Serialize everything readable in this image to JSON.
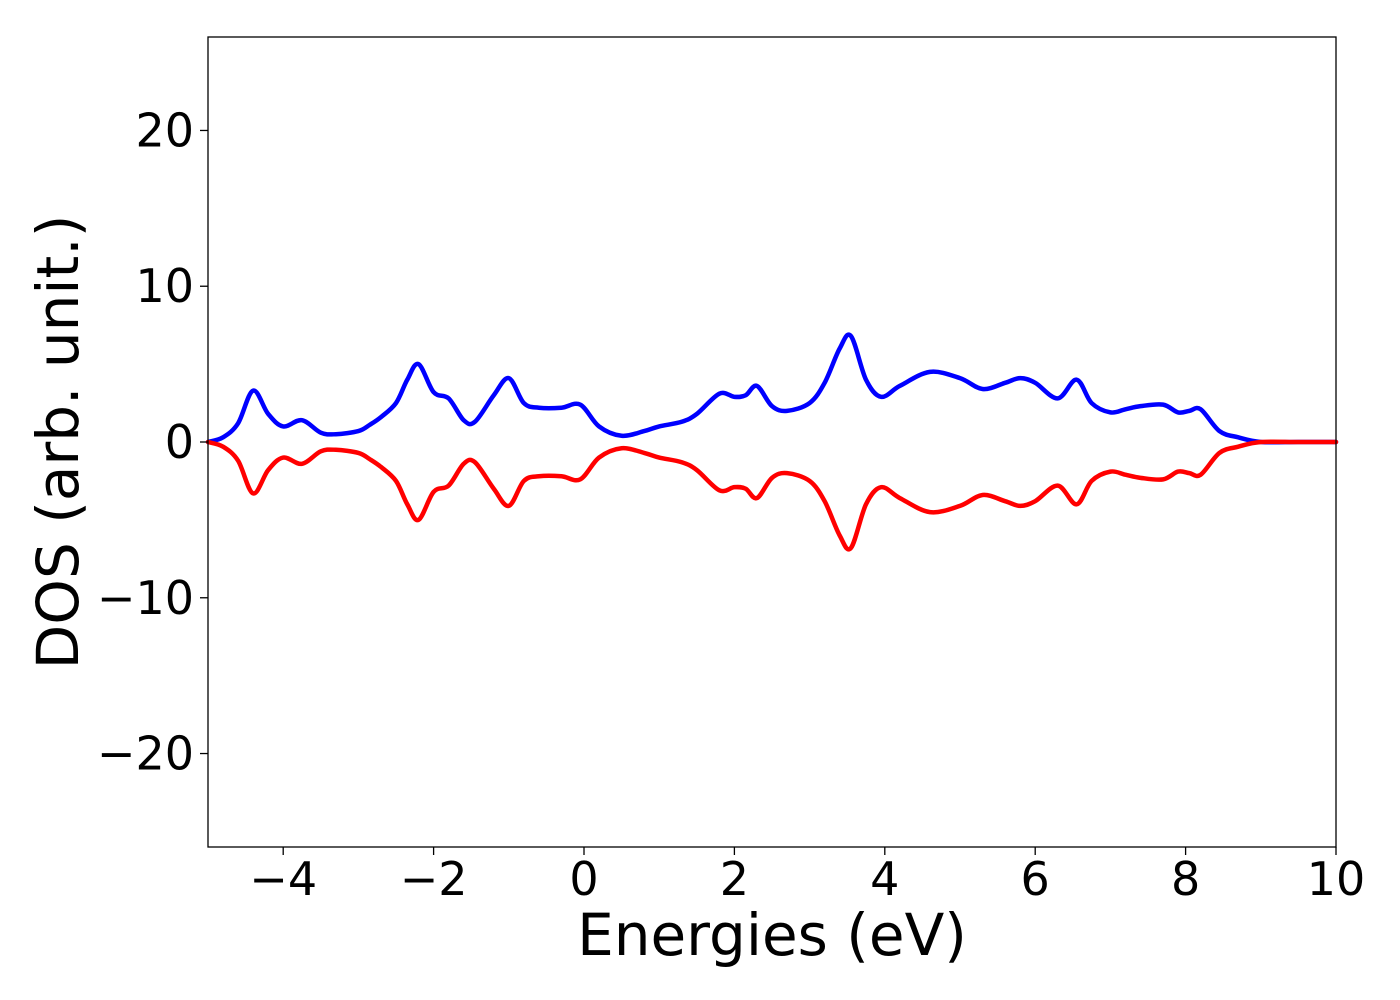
{
  "chart_data": {
    "type": "line",
    "xlabel": "Energies (eV)",
    "ylabel": "DOS (arb. unit.)",
    "xlim": [
      -5,
      10
    ],
    "ylim": [
      -26,
      26
    ],
    "x_ticks": [
      -4,
      -2,
      0,
      2,
      4,
      6,
      8,
      10
    ],
    "x_tick_labels": [
      "−4",
      "−2",
      "0",
      "2",
      "4",
      "6",
      "8",
      "10"
    ],
    "y_ticks": [
      -20,
      -10,
      0,
      10,
      20
    ],
    "y_tick_labels": [
      "−20",
      "−10",
      "0",
      "10",
      "20"
    ],
    "grid": false,
    "legend": "none",
    "series": [
      {
        "color": "#0000ff",
        "x": [
          -5.0,
          -4.8,
          -4.6,
          -4.4,
          -4.2,
          -4.0,
          -3.75,
          -3.5,
          -3.3,
          -3.0,
          -2.85,
          -2.7,
          -2.5,
          -2.35,
          -2.2,
          -2.0,
          -1.8,
          -1.6,
          -1.45,
          -1.2,
          -1.0,
          -0.8,
          -0.6,
          -0.3,
          -0.05,
          0.2,
          0.5,
          0.8,
          1.0,
          1.3,
          1.5,
          1.8,
          2.0,
          2.15,
          2.3,
          2.5,
          2.7,
          3.0,
          3.2,
          3.4,
          3.55,
          3.75,
          3.95,
          4.2,
          4.6,
          5.0,
          5.3,
          5.6,
          5.8,
          6.0,
          6.3,
          6.55,
          6.75,
          7.0,
          7.2,
          7.4,
          7.7,
          7.9,
          8.05,
          8.2,
          8.45,
          8.7,
          9.0,
          9.5,
          10.0
        ],
        "values": [
          0.0,
          0.3,
          1.2,
          3.3,
          1.8,
          1.0,
          1.4,
          0.6,
          0.5,
          0.7,
          1.1,
          1.6,
          2.5,
          4.0,
          5.0,
          3.2,
          2.8,
          1.4,
          1.3,
          3.0,
          4.1,
          2.5,
          2.2,
          2.2,
          2.4,
          1.0,
          0.4,
          0.7,
          1.0,
          1.3,
          1.8,
          3.1,
          2.9,
          3.0,
          3.6,
          2.3,
          2.0,
          2.5,
          3.8,
          6.0,
          6.8,
          4.0,
          2.9,
          3.6,
          4.5,
          4.1,
          3.4,
          3.8,
          4.1,
          3.8,
          2.8,
          4.0,
          2.5,
          1.9,
          2.1,
          2.3,
          2.4,
          1.9,
          2.0,
          2.1,
          0.7,
          0.3,
          0.0,
          0.0,
          0.0
        ]
      },
      {
        "color": "#ff0000",
        "x": [
          -5.0,
          -4.8,
          -4.6,
          -4.4,
          -4.2,
          -4.0,
          -3.75,
          -3.5,
          -3.3,
          -3.0,
          -2.85,
          -2.7,
          -2.5,
          -2.35,
          -2.2,
          -2.0,
          -1.8,
          -1.6,
          -1.45,
          -1.2,
          -1.0,
          -0.8,
          -0.6,
          -0.3,
          -0.05,
          0.2,
          0.5,
          0.8,
          1.0,
          1.3,
          1.5,
          1.8,
          2.0,
          2.15,
          2.3,
          2.5,
          2.7,
          3.0,
          3.2,
          3.4,
          3.55,
          3.75,
          3.95,
          4.2,
          4.6,
          5.0,
          5.3,
          5.6,
          5.8,
          6.0,
          6.3,
          6.55,
          6.75,
          7.0,
          7.2,
          7.4,
          7.7,
          7.9,
          8.05,
          8.2,
          8.45,
          8.7,
          9.0,
          9.5,
          10.0
        ],
        "values": [
          0.0,
          -0.3,
          -1.2,
          -3.3,
          -1.8,
          -1.0,
          -1.4,
          -0.6,
          -0.5,
          -0.7,
          -1.1,
          -1.6,
          -2.5,
          -4.0,
          -5.0,
          -3.2,
          -2.8,
          -1.4,
          -1.3,
          -3.0,
          -4.1,
          -2.5,
          -2.2,
          -2.2,
          -2.4,
          -1.0,
          -0.4,
          -0.7,
          -1.0,
          -1.3,
          -1.8,
          -3.1,
          -2.9,
          -3.0,
          -3.6,
          -2.3,
          -2.0,
          -2.5,
          -3.8,
          -6.0,
          -6.8,
          -4.0,
          -2.9,
          -3.6,
          -4.5,
          -4.1,
          -3.4,
          -3.8,
          -4.1,
          -3.8,
          -2.8,
          -4.0,
          -2.5,
          -1.9,
          -2.1,
          -2.3,
          -2.4,
          -1.9,
          -2.0,
          -2.1,
          -0.7,
          -0.3,
          0.0,
          0.0,
          0.0
        ]
      }
    ]
  }
}
